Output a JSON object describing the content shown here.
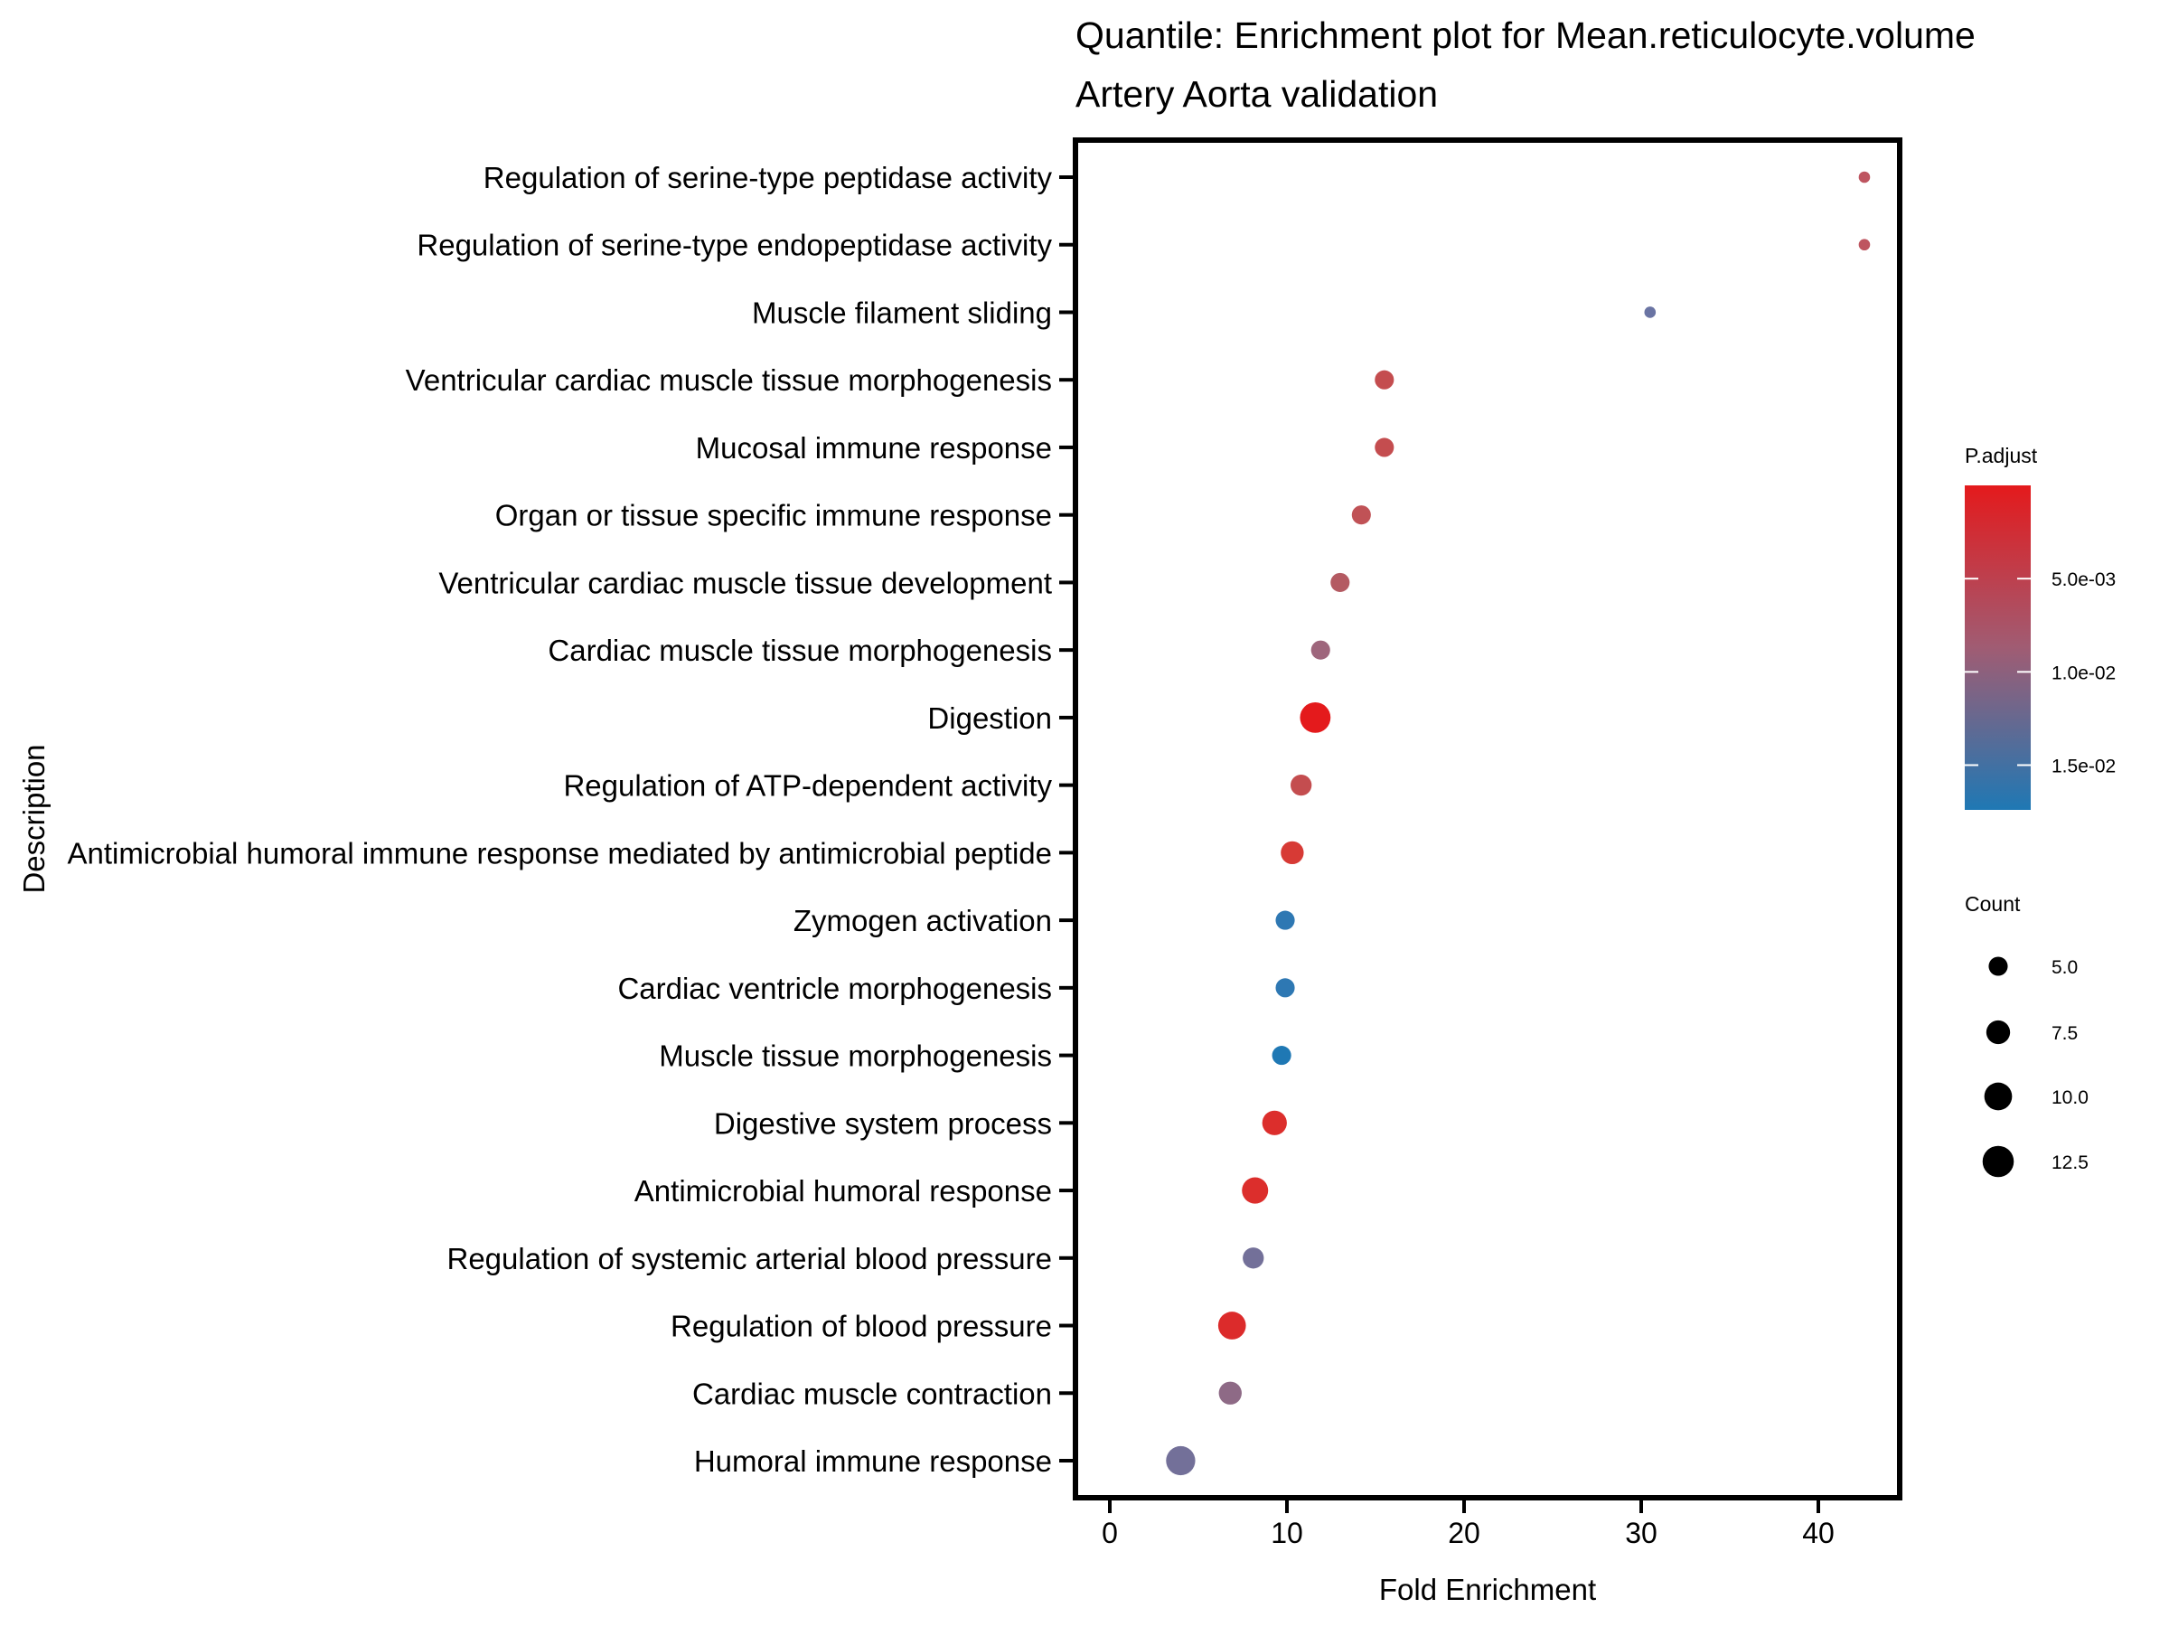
{
  "chart_data": {
    "type": "scatter",
    "title": "Quantile: Enrichment plot for Mean.reticulocyte.volume",
    "subtitle": "Artery Aorta validation",
    "xlabel": "Fold Enrichment",
    "ylabel": "Description",
    "xlim": [
      -1.9,
      44.6
    ],
    "xticks": [
      0,
      10,
      20,
      30,
      40
    ],
    "xtick_labels": [
      "0",
      "10",
      "20",
      "30",
      "40"
    ],
    "grid": false,
    "points": [
      {
        "description": "Regulation of serine-type peptidase activity",
        "fold_enrichment": 42.6,
        "count": 2,
        "p_adjust": 0.0035,
        "color": "#BE5560"
      },
      {
        "description": "Regulation of serine-type endopeptidase activity",
        "fold_enrichment": 42.6,
        "count": 2,
        "p_adjust": 0.0035,
        "color": "#BE5560"
      },
      {
        "description": "Muscle filament sliding",
        "fold_enrichment": 30.5,
        "count": 2,
        "p_adjust": 0.0108,
        "color": "#6A74A3"
      },
      {
        "description": "Ventricular cardiac muscle tissue morphogenesis",
        "fold_enrichment": 15.5,
        "count": 5,
        "p_adjust": 0.0028,
        "color": "#C44D4F"
      },
      {
        "description": "Mucosal immune response",
        "fold_enrichment": 15.5,
        "count": 5,
        "p_adjust": 0.0028,
        "color": "#C44D4F"
      },
      {
        "description": "Organ or tissue specific immune response",
        "fold_enrichment": 14.2,
        "count": 5,
        "p_adjust": 0.0032,
        "color": "#C05256"
      },
      {
        "description": "Ventricular cardiac muscle tissue development",
        "fold_enrichment": 13.0,
        "count": 5,
        "p_adjust": 0.0042,
        "color": "#B45A62"
      },
      {
        "description": "Cardiac muscle tissue morphogenesis",
        "fold_enrichment": 11.9,
        "count": 5,
        "p_adjust": 0.0062,
        "color": "#9E667C"
      },
      {
        "description": "Digestion",
        "fold_enrichment": 11.6,
        "count": 12,
        "p_adjust": 0.0002,
        "color": "#E41A1C"
      },
      {
        "description": "Regulation of ATP-dependent activity",
        "fold_enrichment": 10.8,
        "count": 6,
        "p_adjust": 0.0028,
        "color": "#C44D4F"
      },
      {
        "description": "Antimicrobial humoral immune response mediated by antimicrobial peptide",
        "fold_enrichment": 10.3,
        "count": 7,
        "p_adjust": 0.0011,
        "color": "#D73A35"
      },
      {
        "description": "Zymogen activation",
        "fold_enrichment": 9.9,
        "count": 5,
        "p_adjust": 0.016,
        "color": "#2E78B3"
      },
      {
        "description": "Cardiac ventricle morphogenesis",
        "fold_enrichment": 9.9,
        "count": 5,
        "p_adjust": 0.016,
        "color": "#2E78B3"
      },
      {
        "description": "Muscle tissue morphogenesis",
        "fold_enrichment": 9.7,
        "count": 5,
        "p_adjust": 0.0174,
        "color": "#1F78B4"
      },
      {
        "description": "Digestive system process",
        "fold_enrichment": 9.3,
        "count": 8,
        "p_adjust": 0.0007,
        "color": "#DC2E2C"
      },
      {
        "description": "Antimicrobial humoral response",
        "fold_enrichment": 8.2,
        "count": 9,
        "p_adjust": 0.0007,
        "color": "#DC2E2C"
      },
      {
        "description": "Regulation of systemic arterial blood pressure",
        "fold_enrichment": 8.1,
        "count": 6,
        "p_adjust": 0.01,
        "color": "#737099"
      },
      {
        "description": "Regulation of blood pressure",
        "fold_enrichment": 6.9,
        "count": 10,
        "p_adjust": 0.0007,
        "color": "#DC2B2B"
      },
      {
        "description": "Cardiac muscle contraction",
        "fold_enrichment": 6.8,
        "count": 7,
        "p_adjust": 0.0076,
        "color": "#8E6A86"
      },
      {
        "description": "Humoral immune response",
        "fold_enrichment": 4.0,
        "count": 11,
        "p_adjust": 0.01,
        "color": "#737099"
      }
    ],
    "color_legend": {
      "title": "P.adjust",
      "range": [
        0.0,
        0.0174
      ],
      "low_color": "#E41A1C",
      "high_color": "#1F78B4",
      "ticks": [
        0.005,
        0.01,
        0.015
      ],
      "tick_labels": [
        "5.0e-03",
        "1.0e-02",
        "1.5e-02"
      ],
      "placement": "right"
    },
    "size_legend": {
      "title": "Count",
      "values": [
        5.0,
        7.5,
        10.0,
        12.5
      ],
      "labels": [
        "5.0",
        "7.5",
        "10.0",
        "12.5"
      ],
      "placement": "right"
    }
  }
}
